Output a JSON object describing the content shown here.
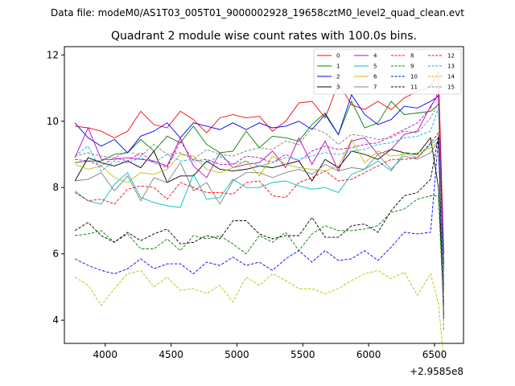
{
  "chart_data": {
    "type": "line",
    "suptitle": "Data file: modeM0/AS1T03_005T01_9000002928_19658cztM0_level2_quad_clean.evt",
    "title": "Quadrant 2 module wise count rates with 100.0s bins.",
    "xlabel": "",
    "ylabel": "",
    "x_offset_label": "+2.9585e8",
    "xlim": [
      3690,
      6720
    ],
    "ylim": [
      3.3,
      12.25
    ],
    "xticks": [
      4000,
      4500,
      5000,
      5500,
      6000,
      6500
    ],
    "yticks": [
      4,
      6,
      8,
      10,
      12
    ],
    "x": [
      3770,
      3870,
      3970,
      4070,
      4170,
      4270,
      4370,
      4470,
      4570,
      4670,
      4770,
      4870,
      4970,
      5070,
      5170,
      5270,
      5370,
      5470,
      5570,
      5670,
      5770,
      5870,
      5970,
      6070,
      6170,
      6270,
      6370,
      6470,
      6530,
      6570
    ],
    "legend_position": "upper right",
    "series": [
      {
        "name": "0",
        "color": "#ff0000",
        "style": "solid",
        "values": [
          9.85,
          9.8,
          9.7,
          9.5,
          9.7,
          10.3,
          9.9,
          9.8,
          10.3,
          10.05,
          9.65,
          10.1,
          10.2,
          10.1,
          10.15,
          9.7,
          10.0,
          10.55,
          10.6,
          10.1,
          11.15,
          10.5,
          10.35,
          10.6,
          10.35,
          10.7,
          10.9,
          11.05,
          11.5,
          6.0
        ]
      },
      {
        "name": "1",
        "color": "#008000",
        "style": "solid",
        "values": [
          8.75,
          8.8,
          8.8,
          9.0,
          9.05,
          9.45,
          9.1,
          9.55,
          9.35,
          9.85,
          9.3,
          9.05,
          9.1,
          9.7,
          9.2,
          9.55,
          9.5,
          9.4,
          9.9,
          10.25,
          9.6,
          10.6,
          9.8,
          9.95,
          10.6,
          10.2,
          10.25,
          10.3,
          10.5,
          5.5
        ]
      },
      {
        "name": "2",
        "color": "#0000ff",
        "style": "solid",
        "values": [
          9.95,
          9.5,
          9.25,
          9.45,
          9.05,
          9.55,
          9.7,
          9.95,
          9.5,
          9.95,
          9.85,
          9.75,
          9.95,
          9.75,
          9.95,
          9.8,
          9.85,
          10.0,
          9.75,
          10.2,
          9.6,
          10.8,
          10.2,
          9.9,
          10.05,
          10.45,
          10.4,
          10.6,
          10.75,
          5.7
        ]
      },
      {
        "name": "3",
        "color": "#000000",
        "style": "solid",
        "values": [
          8.2,
          8.9,
          8.75,
          8.65,
          8.8,
          8.6,
          9.1,
          8.15,
          8.35,
          8.35,
          8.8,
          8.55,
          8.5,
          8.55,
          8.65,
          8.6,
          8.7,
          8.8,
          8.2,
          8.85,
          8.6,
          9.1,
          9.0,
          8.85,
          9.15,
          9.05,
          9.0,
          9.5,
          8.0,
          4.5
        ]
      },
      {
        "name": "4",
        "color": "#bf00bf",
        "style": "solid",
        "values": [
          8.9,
          9.8,
          8.85,
          8.85,
          8.9,
          8.85,
          8.8,
          8.65,
          9.5,
          8.65,
          8.3,
          9.05,
          8.6,
          8.7,
          8.75,
          9.1,
          8.6,
          9.5,
          8.7,
          9.4,
          8.5,
          9.4,
          9.5,
          9.0,
          9.15,
          9.6,
          9.7,
          10.45,
          10.8,
          5.0
        ]
      },
      {
        "name": "5",
        "color": "#00bfbf",
        "style": "solid",
        "values": [
          7.9,
          7.6,
          7.5,
          8.1,
          8.45,
          7.7,
          7.55,
          7.45,
          7.4,
          8.4,
          7.65,
          7.7,
          8.25,
          8.0,
          8.0,
          8.15,
          8.2,
          8.05,
          7.95,
          8.0,
          7.85,
          8.4,
          8.55,
          8.8,
          8.5,
          9.05,
          8.9,
          9.3,
          9.5,
          5.3
        ]
      },
      {
        "name": "6",
        "color": "#bfbf00",
        "style": "solid",
        "values": [
          8.7,
          8.55,
          8.65,
          8.3,
          8.15,
          8.45,
          8.4,
          8.55,
          9.0,
          8.95,
          8.55,
          8.45,
          8.6,
          8.8,
          8.35,
          8.95,
          8.7,
          8.6,
          8.55,
          8.5,
          8.65,
          9.45,
          8.75,
          9.1,
          8.95,
          9.0,
          9.05,
          9.2,
          9.4,
          4.4
        ]
      },
      {
        "name": "7",
        "color": "#808080",
        "style": "solid",
        "values": [
          8.2,
          8.25,
          8.45,
          7.9,
          8.35,
          7.6,
          8.3,
          8.15,
          8.75,
          7.9,
          8.15,
          7.5,
          8.2,
          8.45,
          8.45,
          8.3,
          8.45,
          8.55,
          8.4,
          8.7,
          8.5,
          8.6,
          8.55,
          9.0,
          8.55,
          8.95,
          8.85,
          9.05,
          9.4,
          4.6
        ]
      },
      {
        "name": "8",
        "color": "#ff0000",
        "style": "dashed",
        "values": [
          7.85,
          7.6,
          7.65,
          7.5,
          7.95,
          8.05,
          8.0,
          7.65,
          8.15,
          8.0,
          7.85,
          7.85,
          7.8,
          8.15,
          8.2,
          7.75,
          7.7,
          8.15,
          8.3,
          8.5,
          8.2,
          8.25,
          8.45,
          8.65,
          8.85,
          8.85,
          8.9,
          9.35,
          9.65,
          4.9
        ]
      },
      {
        "name": "9",
        "color": "#008000",
        "style": "dashed",
        "values": [
          6.55,
          6.6,
          6.7,
          6.35,
          6.6,
          6.15,
          6.15,
          6.45,
          6.1,
          6.55,
          6.45,
          6.55,
          6.3,
          6.0,
          6.55,
          6.35,
          6.65,
          6.1,
          6.6,
          6.85,
          6.7,
          6.7,
          6.75,
          6.85,
          7.25,
          7.35,
          7.65,
          7.75,
          7.75,
          4.2
        ]
      },
      {
        "name": "10",
        "color": "#0000ff",
        "style": "dashed",
        "values": [
          5.85,
          5.65,
          5.5,
          5.4,
          5.55,
          5.85,
          5.55,
          5.7,
          5.7,
          5.4,
          5.75,
          5.65,
          5.9,
          5.65,
          5.75,
          5.5,
          5.85,
          6.1,
          5.75,
          6.1,
          5.8,
          5.85,
          6.1,
          5.8,
          6.2,
          6.65,
          6.6,
          6.65,
          9.5,
          4.1
        ]
      },
      {
        "name": "11",
        "color": "#000000",
        "style": "dashed",
        "values": [
          6.7,
          6.95,
          6.55,
          6.35,
          6.65,
          6.4,
          6.6,
          6.75,
          6.3,
          6.35,
          6.55,
          6.45,
          7.0,
          7.0,
          6.6,
          6.45,
          6.55,
          6.55,
          7.1,
          6.5,
          6.5,
          6.85,
          6.9,
          6.65,
          7.3,
          7.75,
          7.85,
          8.25,
          9.55,
          4.0
        ]
      },
      {
        "name": "12",
        "color": "#bf00bf",
        "style": "dashed",
        "values": [
          8.85,
          8.8,
          8.65,
          8.9,
          8.8,
          9.05,
          8.75,
          8.6,
          9.4,
          8.8,
          8.85,
          8.7,
          8.7,
          8.95,
          8.9,
          8.75,
          9.0,
          8.8,
          9.1,
          9.25,
          9.15,
          9.2,
          9.3,
          9.35,
          9.55,
          9.75,
          9.95,
          10.4,
          10.9,
          5.1
        ]
      },
      {
        "name": "13",
        "color": "#00bfbf",
        "style": "dashed",
        "values": [
          8.95,
          9.25,
          8.5,
          8.8,
          8.75,
          8.9,
          8.75,
          9.0,
          8.8,
          8.85,
          8.75,
          8.95,
          8.7,
          8.8,
          8.65,
          8.75,
          8.9,
          8.85,
          8.95,
          9.05,
          9.0,
          9.1,
          9.15,
          9.3,
          9.35,
          9.5,
          9.55,
          9.7,
          10.4,
          4.8
        ]
      },
      {
        "name": "14",
        "color": "#bfbf00",
        "style": "dashed",
        "values": [
          5.3,
          5.05,
          4.45,
          4.95,
          5.4,
          5.5,
          5.0,
          5.3,
          4.9,
          4.95,
          4.8,
          5.05,
          4.55,
          5.3,
          5.05,
          5.4,
          5.2,
          4.95,
          4.95,
          4.8,
          4.95,
          5.2,
          5.4,
          5.5,
          5.25,
          5.45,
          4.75,
          5.4,
          4.5,
          2.8
        ]
      },
      {
        "name": "15",
        "color": "#808080",
        "style": "dashed",
        "values": [
          8.95,
          9.05,
          8.95,
          8.9,
          9.1,
          8.95,
          9.3,
          9.0,
          9.05,
          8.85,
          9.15,
          9.0,
          8.95,
          9.1,
          9.2,
          9.15,
          9.4,
          9.3,
          9.8,
          9.65,
          9.3,
          9.6,
          9.55,
          9.45,
          9.5,
          9.7,
          9.65,
          10.1,
          10.55,
          3.7
        ]
      }
    ]
  }
}
